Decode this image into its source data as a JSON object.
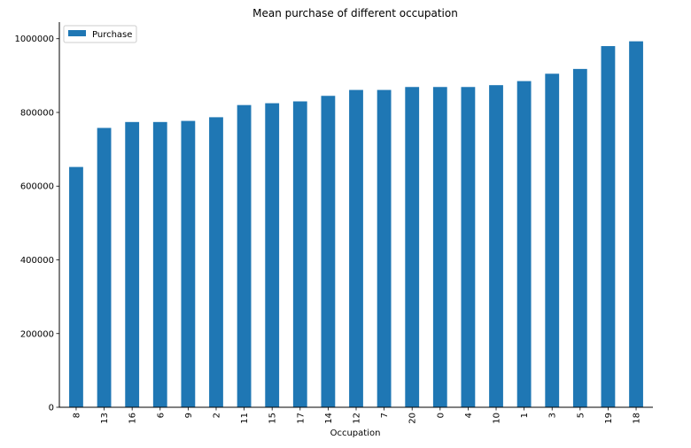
{
  "chart_data": {
    "type": "bar",
    "title": "Mean purchase of different occupation",
    "xlabel": "Occupation",
    "ylabel": "",
    "categories": [
      "8",
      "13",
      "16",
      "6",
      "9",
      "2",
      "11",
      "15",
      "17",
      "14",
      "12",
      "7",
      "20",
      "0",
      "4",
      "10",
      "1",
      "3",
      "5",
      "19",
      "18"
    ],
    "series": [
      {
        "name": "Purchase",
        "color": "#1f77b4",
        "values": [
          652000,
          758000,
          774000,
          774000,
          777000,
          787000,
          820000,
          825000,
          830000,
          845000,
          861000,
          861000,
          869000,
          869000,
          869000,
          874000,
          885000,
          905000,
          918000,
          980000,
          993000
        ]
      }
    ],
    "ylim": [
      0,
      1045000
    ],
    "yticks": [
      0,
      200000,
      400000,
      600000,
      800000,
      1000000
    ],
    "grid": false,
    "legend": "top-left",
    "xtick_rotation": "vertical"
  }
}
